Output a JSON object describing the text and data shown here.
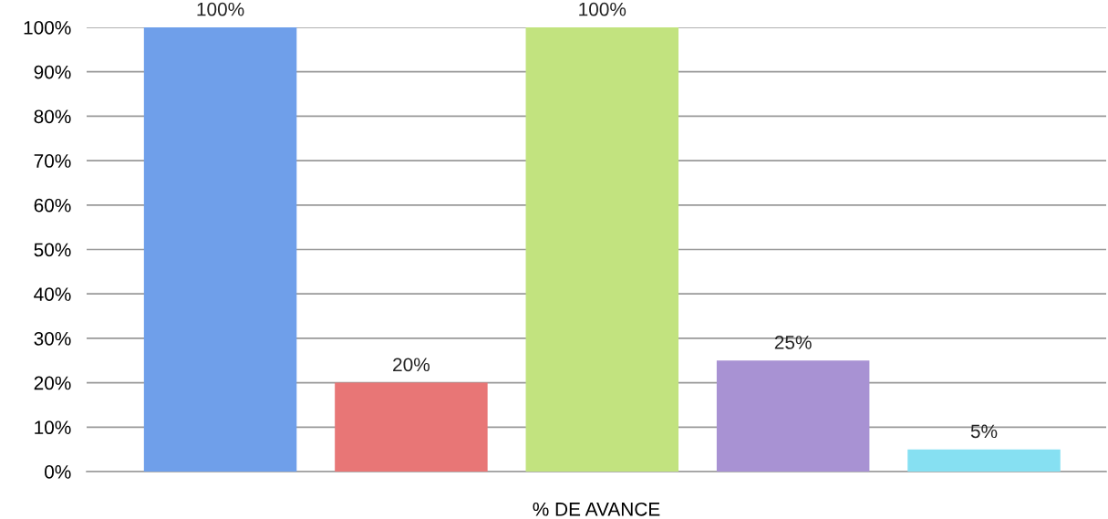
{
  "chart_data": {
    "type": "bar",
    "xlabel": "% DE AVANCE",
    "categories": [
      null,
      null,
      null,
      null,
      null
    ],
    "values": [
      100,
      20,
      100,
      25,
      5
    ],
    "colors": [
      "#6f9fea",
      "#e87676",
      "#c2e37f",
      "#a892d3",
      "#86e0f2"
    ],
    "value_labels": [
      "100%",
      "20%",
      "100%",
      "25%",
      "5%"
    ],
    "ylim": [
      0,
      100
    ],
    "yticks": [
      {
        "value": 0,
        "label": "0%"
      },
      {
        "value": 10,
        "label": "10%"
      },
      {
        "value": 20,
        "label": "20%"
      },
      {
        "value": 30,
        "label": "30%"
      },
      {
        "value": 40,
        "label": "40%"
      },
      {
        "value": 50,
        "label": "50%"
      },
      {
        "value": 60,
        "label": "60%"
      },
      {
        "value": 70,
        "label": "70%"
      },
      {
        "value": 80,
        "label": "80%"
      },
      {
        "value": 90,
        "label": "90%"
      },
      {
        "value": 100,
        "label": "100%"
      }
    ],
    "grid": "y",
    "legend": false
  }
}
